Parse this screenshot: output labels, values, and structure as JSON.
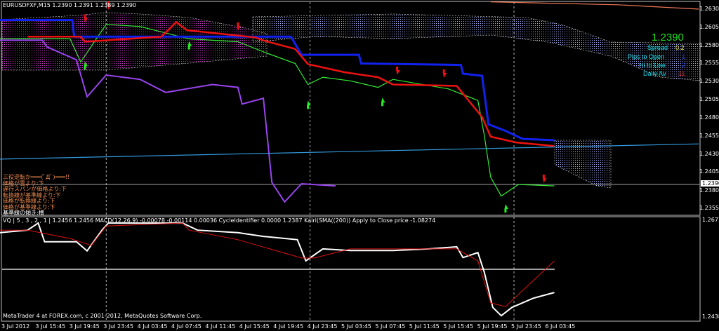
{
  "window": {
    "symbol_header": "EURUSDFXF,M15  1.2390 1.2391 1.2389 1.2390",
    "lower_header": "VQ | 5 , 3 , 2 , 1 | 1.2456 1.2456 MACD(12,26,9) -0.00078 -0.00114 0.00036  CycleIdentifier 0.0000 1.2387  Kairi(SMA((200)) Apply to Close price -1.08274",
    "footer": "MetaTrader 4 at FOREX.com, c 2001-2012, MetaQuotes Software Corp."
  },
  "info_panel": {
    "price": "1.2390",
    "spread_label": "Spread",
    "spread_value": "0.2",
    "pips_to_open_label": "Pips to Open",
    "pips_to_open_value": "1",
    "hi_to_low_label": "Hi to Low",
    "hi_to_low_value": "2",
    "daily_av_label": "Daily Av",
    "daily_av_value": "11",
    "colors": {
      "price": "#22dd22",
      "label": "#22ddee",
      "spread": "#eeee22",
      "pips": "#1133ee",
      "daily": "#ee2222"
    }
  },
  "signals": [
    "三役逆転か━━━(ﾟДﾟ)━━━!!",
    "価格が雲より:下",
    "遅行スパンが価格より:下",
    "転換線が基準線より:下",
    "価格が転換線より:下",
    "価格が基準線より:下",
    "基準線の傾き:横"
  ],
  "chart_data": [
    {
      "type": "line",
      "title": "EURUSDFXF,M15",
      "price_axis": {
        "ticks": [
          "1.2630",
          "1.2605",
          "1.2580",
          "1.2555",
          "1.2530",
          "1.2505",
          "1.2480",
          "1.2455",
          "1.2430",
          "1.2405",
          "1.2380",
          "1.2355"
        ],
        "current": "1.2390",
        "ylim": [
          1.2355,
          1.263
        ]
      },
      "time_axis": [
        "3 Jul 2012",
        "3 Jul 15:45",
        "3 Jul 19:45",
        "3 Jul 23:45",
        "4 Jul 03:45",
        "4 Jul 07:45",
        "4 Jul 11:45",
        "4 Jul 15:45",
        "4 Jul 19:45",
        "4 Jul 23:45",
        "5 Jul 03:45",
        "5 Jul 07:45",
        "5 Jul 11:45",
        "5 Jul 15:45",
        "5 Jul 19:45",
        "5 Jul 23:45",
        "6 Jul 03:45"
      ],
      "period_separators": [
        "4 Jul 00:00",
        "5 Jul 00:00",
        "6 Jul 00:00"
      ],
      "series": [
        {
          "key": "price",
          "color": "#33ee33",
          "points": [
            [
              "3 Jul 11:30",
              1.2589
            ],
            [
              "3 Jul 19:45",
              1.2589
            ],
            [
              "3 Jul 21:00",
              1.2557
            ],
            [
              "4 Jul 00:00",
              1.2609
            ],
            [
              "4 Jul 04:00",
              1.2606
            ],
            [
              "4 Jul 09:45",
              1.2589
            ],
            [
              "4 Jul 15:30",
              1.2585
            ],
            [
              "4 Jul 18:45",
              1.257
            ],
            [
              "4 Jul 22:15",
              1.2555
            ],
            [
              "4 Jul 23:45",
              1.2526
            ],
            [
              "5 Jul 01:30",
              1.2536
            ],
            [
              "5 Jul 04:45",
              1.2531
            ],
            [
              "5 Jul 08:00",
              1.2522
            ],
            [
              "5 Jul 09:45",
              1.2533
            ],
            [
              "5 Jul 16:15",
              1.252
            ],
            [
              "5 Jul 19:45",
              1.2504
            ],
            [
              "5 Jul 20:30",
              1.2456
            ],
            [
              "5 Jul 21:15",
              1.2398
            ],
            [
              "5 Jul 22:30",
              1.2372
            ],
            [
              "6 Jul 00:30",
              1.2388
            ],
            [
              "6 Jul 04:45",
              1.2386
            ]
          ]
        },
        {
          "key": "blue",
          "color": "#1122ee",
          "points": [
            [
              "3 Jul 11:30",
              1.2615
            ],
            [
              "3 Jul 20:00",
              1.2615
            ],
            [
              "3 Jul 20:15",
              1.2592
            ],
            [
              "4 Jul 21:45",
              1.2592
            ],
            [
              "4 Jul 23:00",
              1.2567
            ],
            [
              "5 Jul 05:45",
              1.2567
            ],
            [
              "5 Jul 06:00",
              1.2555
            ],
            [
              "5 Jul 17:45",
              1.2553
            ],
            [
              "5 Jul 18:00",
              1.2541
            ],
            [
              "5 Jul 20:15",
              1.2538
            ],
            [
              "5 Jul 21:00",
              1.2471
            ],
            [
              "5 Jul 23:00",
              1.2462
            ],
            [
              "6 Jul 01:00",
              1.2451
            ],
            [
              "6 Jul 04:45",
              1.2449
            ]
          ]
        },
        {
          "key": "red",
          "color": "#ee1111",
          "points": [
            [
              "3 Jul 14:45",
              1.2592
            ],
            [
              "3 Jul 21:00",
              1.2592
            ],
            [
              "3 Jul 21:30",
              1.2585
            ],
            [
              "4 Jul 06:30",
              1.2592
            ],
            [
              "4 Jul 08:15",
              1.2612
            ],
            [
              "4 Jul 09:30",
              1.2601
            ],
            [
              "4 Jul 17:30",
              1.2591
            ],
            [
              "4 Jul 18:45",
              1.2586
            ],
            [
              "4 Jul 22:15",
              1.2575
            ],
            [
              "4 Jul 23:45",
              1.2554
            ],
            [
              "5 Jul 04:00",
              1.2543
            ],
            [
              "5 Jul 08:00",
              1.2536
            ],
            [
              "5 Jul 09:45",
              1.2526
            ],
            [
              "5 Jul 17:15",
              1.2524
            ],
            [
              "5 Jul 20:15",
              1.2481
            ],
            [
              "5 Jul 21:15",
              1.2454
            ],
            [
              "6 Jul 00:15",
              1.2446
            ],
            [
              "6 Jul 04:45",
              1.2441
            ]
          ]
        },
        {
          "key": "purple",
          "color": "#9944ee",
          "points": [
            [
              "3 Jul 11:30",
              1.2587
            ],
            [
              "3 Jul 16:30",
              1.2587
            ],
            [
              "3 Jul 17:00",
              1.2578
            ],
            [
              "3 Jul 20:30",
              1.256
            ],
            [
              "3 Jul 21:45",
              1.2509
            ],
            [
              "4 Jul 00:00",
              1.2539
            ],
            [
              "4 Jul 04:00",
              1.2533
            ],
            [
              "4 Jul 07:00",
              1.2515
            ],
            [
              "4 Jul 12:30",
              1.2526
            ],
            [
              "4 Jul 15:30",
              1.2522
            ],
            [
              "4 Jul 16:00",
              1.2499
            ],
            [
              "4 Jul 18:30",
              1.2507
            ],
            [
              "4 Jul 19:30",
              1.2391
            ],
            [
              "4 Jul 21:00",
              1.2364
            ],
            [
              "4 Jul 23:00",
              1.2389
            ],
            [
              "5 Jul 03:00",
              1.2386
            ]
          ]
        },
        {
          "key": "trend",
          "color": "#3399dd",
          "points": [
            [
              "3 Jul 11:30",
              1.2423
            ],
            [
              "6 Jul 21:45",
              1.2444
            ]
          ]
        },
        {
          "key": "orange",
          "color": "#ee7755",
          "points": [
            [
              "5 Jul 21:15",
              1.264
            ],
            [
              "6 Jul 12:15",
              1.2636
            ],
            [
              "6 Jul 21:45",
              1.263
            ]
          ]
        }
      ],
      "markers": [
        {
          "type": "sell",
          "color": "#ee1111",
          "at": [
            "3 Jul 21:30",
            1.2615
          ]
        },
        {
          "type": "sell",
          "color": "#ee1111",
          "at": [
            "4 Jul 00:15",
            1.2633
          ]
        },
        {
          "type": "sell",
          "color": "#ee1111",
          "at": [
            "4 Jul 15:30",
            1.2604
          ]
        },
        {
          "type": "sell",
          "color": "#ee1111",
          "at": [
            "5 Jul 10:15",
            1.2543
          ]
        },
        {
          "type": "sell",
          "color": "#ee1111",
          "at": [
            "5 Jul 15:45",
            1.2539
          ]
        },
        {
          "type": "sell",
          "color": "#ee1111",
          "at": [
            "6 Jul 03:30",
            1.2394
          ]
        },
        {
          "type": "buy",
          "color": "#22ee22",
          "at": [
            "3 Jul 21:30",
            1.2554
          ]
        },
        {
          "type": "buy",
          "color": "#22ee22",
          "at": [
            "4 Jul 09:45",
            1.2582
          ]
        },
        {
          "type": "buy",
          "color": "#22ee22",
          "at": [
            "4 Jul 23:45",
            1.25
          ]
        },
        {
          "type": "buy",
          "color": "#22ee22",
          "at": [
            "5 Jul 08:30",
            1.2504
          ]
        },
        {
          "type": "buy",
          "color": "#22ee22",
          "at": [
            "5 Jul 23:00",
            1.2357
          ]
        }
      ]
    },
    {
      "type": "line",
      "title": "VQ / MACD / CycleIdentifier / Kairi",
      "price_axis": {
        "ticks": [
          "1.2671",
          "1.2438"
        ],
        "ylim": [
          1.2438,
          1.2671
        ]
      },
      "series": [
        {
          "key": "vq",
          "color": "#ffffff",
          "points": [
            [
              "3 Jul 11:30",
              1.2641
            ],
            [
              "3 Jul 14:45",
              1.2647
            ],
            [
              "3 Jul 16:00",
              1.2664
            ],
            [
              "3 Jul 16:45",
              1.2619
            ],
            [
              "3 Jul 20:30",
              1.2619
            ],
            [
              "3 Jul 21:45",
              1.2597
            ],
            [
              "3 Jul 23:30",
              1.2647
            ],
            [
              "4 Jul 00:15",
              1.2664
            ],
            [
              "4 Jul 09:00",
              1.2664
            ],
            [
              "4 Jul 10:45",
              1.2647
            ],
            [
              "4 Jul 15:30",
              1.2641
            ],
            [
              "4 Jul 18:30",
              1.2632
            ],
            [
              "4 Jul 22:30",
              1.2624
            ],
            [
              "4 Jul 23:30",
              1.2573
            ],
            [
              "5 Jul 01:30",
              1.2602
            ],
            [
              "5 Jul 04:45",
              1.2598
            ],
            [
              "5 Jul 09:45",
              1.2598
            ],
            [
              "5 Jul 14:00",
              1.2602
            ],
            [
              "5 Jul 17:15",
              1.2607
            ],
            [
              "5 Jul 18:00",
              1.2581
            ],
            [
              "5 Jul 19:45",
              1.2593
            ],
            [
              "5 Jul 20:30",
              1.2546
            ],
            [
              "5 Jul 21:30",
              1.2461
            ],
            [
              "5 Jul 22:30",
              1.2441
            ],
            [
              "5 Jul 23:45",
              1.2461
            ],
            [
              "6 Jul 02:15",
              1.2483
            ],
            [
              "6 Jul 04:45",
              1.2497
            ]
          ]
        },
        {
          "key": "signal",
          "color": "#dd1111",
          "points": [
            [
              "3 Jul 11:30",
              1.2647
            ],
            [
              "3 Jul 14:45",
              1.2647
            ],
            [
              "3 Jul 19:45",
              1.2627
            ],
            [
              "3 Jul 22:15",
              1.261
            ],
            [
              "4 Jul 00:00",
              1.2657
            ],
            [
              "4 Jul 09:00",
              1.2664
            ],
            [
              "4 Jul 09:45",
              1.2647
            ],
            [
              "4 Jul 15:30",
              1.2624
            ],
            [
              "4 Jul 23:00",
              1.258
            ],
            [
              "5 Jul 00:30",
              1.258
            ],
            [
              "5 Jul 04:45",
              1.2602
            ],
            [
              "5 Jul 17:15",
              1.2602
            ],
            [
              "5 Jul 19:45",
              1.2573
            ],
            [
              "5 Jul 21:15",
              1.2472
            ],
            [
              "5 Jul 23:00",
              1.2463
            ],
            [
              "6 Jul 04:45",
              1.2573
            ]
          ]
        }
      ]
    }
  ]
}
